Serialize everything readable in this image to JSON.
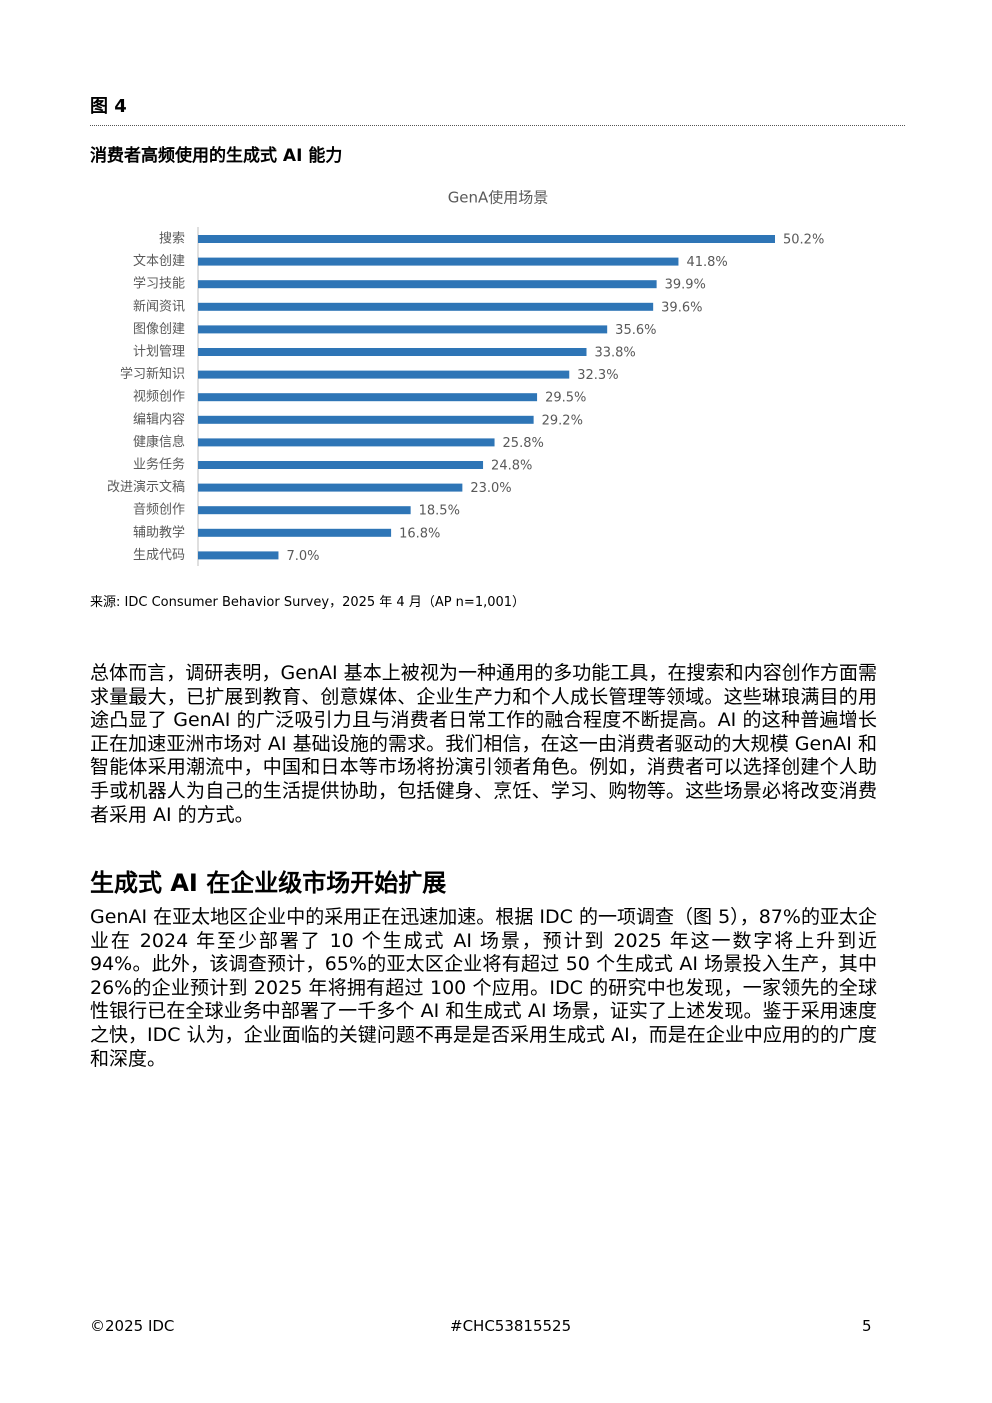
{
  "figure_label": "图 4",
  "figure_title": "消费者高频使用的生成式 AI 能力",
  "chart_data": {
    "type": "bar",
    "orientation": "horizontal",
    "title": "GenA使用场景",
    "color": "#2e75b6",
    "categories": [
      "搜索",
      "文本创建",
      "学习技能",
      "新闻资讯",
      "图像创建",
      "计划管理",
      "学习新知识",
      "视频创作",
      "编辑内容",
      "健康信息",
      "业务任务",
      "改进演示文稿",
      "音频创作",
      "辅助教学",
      "生成代码"
    ],
    "values": [
      50.2,
      41.8,
      39.9,
      39.6,
      35.6,
      33.8,
      32.3,
      29.5,
      29.2,
      25.8,
      24.8,
      23.0,
      18.5,
      16.8,
      7.0
    ],
    "value_labels": [
      "50.2%",
      "41.8%",
      "39.9%",
      "39.6%",
      "35.6%",
      "33.8%",
      "32.3%",
      "29.5%",
      "29.2%",
      "25.8%",
      "24.8%",
      "23.0%",
      "18.5%",
      "16.8%",
      "7.0%"
    ]
  },
  "source": "来源: IDC Consumer Behavior Survey，2025 年 4 月（AP n=1,001）",
  "paragraphs": [
    "总体而言，调研表明，GenAI 基本上被视为一种通用的多功能工具，在搜索和内容创作方面需求量最大，已扩展到教育、创意媒体、企业生产力和个人成长管理等领域。这些琳琅满目的用途凸显了 GenAI 的广泛吸引力且与消费者日常工作的融合程度不断提高。AI 的这种普遍增长正在加速亚洲市场对 AI 基础设施的需求。我们相信，在这一由消费者驱动的大规模 GenAI 和智能体采用潮流中，中国和日本等市场将扮演引领者角色。例如，消费者可以选择创建个人助手或机器人为自己的生活提供协助，包括健身、烹饪、学习、购物等。这些场景必将改变消费者采用 AI 的方式。"
  ],
  "section": {
    "heading": "生成式 AI 在企业级市场开始扩展",
    "paragraphs": [
      "GenAI 在亚太地区企业中的采用正在迅速加速。根据 IDC 的一项调查（图 5），87%的亚太企业在 2024 年至少部署了 10 个生成式 AI 场景，预计到 2025 年这一数字将上升到近 94%。此外，该调查预计，65%的亚太区企业将有超过 50 个生成式 AI 场景投入生产，其中 26%的企业预计到 2025 年将拥有超过 100 个应用。IDC 的研究中也发现，一家领先的全球性银行已在全球业务中部署了一千多个 AI 和生成式 AI 场景，证实了上述发现。鉴于采用速度之快，IDC 认为，企业面临的关键问题不再是是否采用生成式 AI，而是在企业中应用的的广度和深度。"
    ]
  },
  "footer": {
    "copyright": "©2025 IDC",
    "doc_id": "#CHC53815525",
    "page": "5"
  }
}
